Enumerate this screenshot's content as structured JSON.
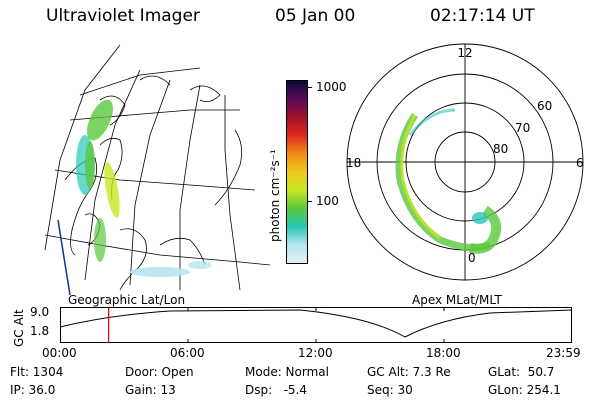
{
  "header": {
    "instrument": "Ultraviolet Imager",
    "date": "05 Jan 00",
    "time": "02:17:14 UT"
  },
  "panels": {
    "geo_caption": "Geographic Lat/Lon",
    "apex_caption": "Apex  MLat/MLT",
    "apex_mlt_labels": [
      "12",
      "18",
      "6",
      "0"
    ],
    "apex_mlat_labels": [
      "60",
      "70",
      "80"
    ]
  },
  "colorbar": {
    "unit_label": "photon cm⁻²s⁻¹",
    "ticks": [
      "1000",
      "100"
    ],
    "colors": [
      "#0a0a3c",
      "#5a0a5a",
      "#a0122a",
      "#e0281e",
      "#f08c14",
      "#f0c81e",
      "#c8e61e",
      "#5ac83c",
      "#28c8b4",
      "#b4e6f0",
      "#e6f0f5"
    ]
  },
  "altitude_plot": {
    "ylabel": "GC Alt",
    "yticks": [
      "9.0",
      "1.8"
    ],
    "xticks": [
      "00:00",
      "06:00",
      "12:00",
      "18:00",
      "23:59"
    ],
    "current_time_fraction": 0.095,
    "marker_color": "#e00000"
  },
  "footer": {
    "flt": "Flt: 1304",
    "ip": "IP: 36.0",
    "door": "Door: Open",
    "gain": "Gain: 13",
    "mode": "Mode: Normal",
    "dsp": "Dsp:   -5.4",
    "gc_alt": "GC Alt: 7.3 Re",
    "seq": "Seq: 30",
    "glat": "GLat:  50.7",
    "glon": "GLon: 254.1"
  }
}
